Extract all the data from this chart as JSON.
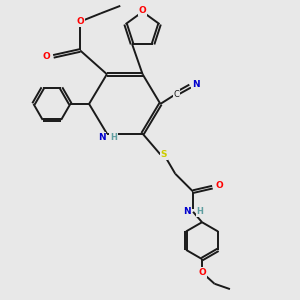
{
  "background_color": "#e8e8e8",
  "bond_color": "#1a1a1a",
  "atom_colors": {
    "O": "#ff0000",
    "N": "#0000cd",
    "S": "#cccc00",
    "C": "#1a1a1a",
    "H": "#5f9ea0"
  },
  "figsize": [
    3.0,
    3.0
  ],
  "dpi": 100
}
